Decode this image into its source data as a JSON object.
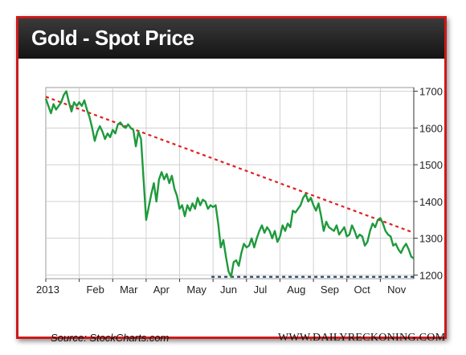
{
  "header": {
    "title": "Gold - Spot Price"
  },
  "footer": {
    "source": "Source: StockCharts.com",
    "site": "WWW.DAILYRECKONING.COM"
  },
  "colors": {
    "line": "#1e9a3c",
    "resistance": "#e02020",
    "support": "#1a3a5c",
    "frame": "#cc1a1a"
  },
  "chart_data": {
    "type": "line",
    "title": "Gold - Spot Price",
    "xlabel": "",
    "ylabel": "",
    "ylim": [
      1190,
      1710
    ],
    "grid": true,
    "x_tick_labels": [
      "2013",
      "Feb",
      "Mar",
      "Apr",
      "May",
      "Jun",
      "Jul",
      "Aug",
      "Sep",
      "Oct",
      "Nov"
    ],
    "y_tick_labels": [
      "1700",
      "1600",
      "1500",
      "1400",
      "1300",
      "1200"
    ],
    "y_ticks": [
      1700,
      1600,
      1500,
      1400,
      1300,
      1200
    ],
    "series": [
      {
        "values": [
          1680,
          1660,
          1640,
          1665,
          1650,
          1660,
          1670,
          1690,
          1700,
          1670,
          1645,
          1670,
          1660,
          1670,
          1660,
          1675,
          1650,
          1630,
          1600,
          1565,
          1590,
          1605,
          1590,
          1570,
          1585,
          1575,
          1595,
          1585,
          1610,
          1615,
          1605,
          1600,
          1610,
          1600,
          1595,
          1550,
          1590,
          1570,
          1460,
          1350,
          1385,
          1420,
          1450,
          1400,
          1460,
          1480,
          1460,
          1475,
          1450,
          1470,
          1435,
          1415,
          1380,
          1390,
          1360,
          1390,
          1375,
          1395,
          1380,
          1410,
          1390,
          1405,
          1400,
          1380,
          1390,
          1385,
          1390,
          1340,
          1275,
          1295,
          1250,
          1210,
          1195,
          1235,
          1240,
          1225,
          1260,
          1285,
          1275,
          1280,
          1300,
          1275,
          1300,
          1320,
          1335,
          1315,
          1330,
          1320,
          1300,
          1320,
          1290,
          1305,
          1335,
          1320,
          1340,
          1330,
          1375,
          1370,
          1380,
          1390,
          1410,
          1420,
          1400,
          1410,
          1390,
          1375,
          1395,
          1360,
          1320,
          1345,
          1330,
          1325,
          1320,
          1335,
          1310,
          1320,
          1330,
          1305,
          1310,
          1335,
          1320,
          1300,
          1310,
          1305,
          1280,
          1290,
          1320,
          1340,
          1330,
          1350,
          1355,
          1340,
          1320,
          1310,
          1305,
          1280,
          1285,
          1270,
          1260,
          1275,
          1285,
          1270,
          1250,
          1245
        ]
      }
    ],
    "trendlines": [
      {
        "name": "resistance",
        "style": "dashed",
        "from": [
          0.0,
          1685
        ],
        "to": [
          1.0,
          1315
        ]
      },
      {
        "name": "support",
        "style": "dashed",
        "from": [
          0.45,
          1195
        ],
        "to": [
          1.0,
          1195
        ]
      }
    ]
  }
}
